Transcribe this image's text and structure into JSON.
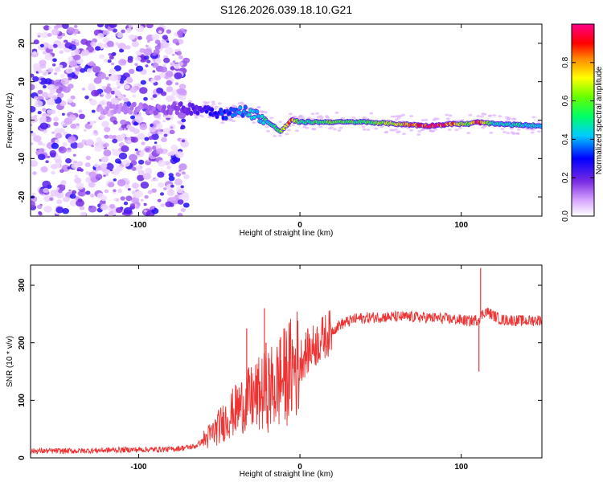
{
  "title": "S126.2026.039.18.10.G21",
  "chart_data": [
    {
      "type": "heatmap",
      "title": "S126.2026.039.18.10.G21",
      "xlabel": "Height of straight line (km)",
      "ylabel": "Frequency (Hz)",
      "xlim": [
        -167,
        150
      ],
      "ylim": [
        -25,
        25
      ],
      "xticks": [
        -100,
        0,
        100
      ],
      "xtick_labels": [
        "-100",
        "0",
        "100"
      ],
      "yticks": [
        -20,
        -10,
        0,
        10,
        20
      ],
      "ytick_labels": [
        "-20",
        "-10",
        "0",
        "10",
        "20"
      ],
      "colorbar": {
        "label": "Normalized spectral amplitude",
        "range": [
          0,
          1
        ],
        "ticks": [
          0.0,
          0.2,
          0.4,
          0.6,
          0.8
        ],
        "tick_labels": [
          "0.0",
          "0.2",
          "0.4",
          "0.6",
          "0.8"
        ]
      },
      "signal_track": {
        "description_points_x": [
          -120,
          -100,
          -80,
          -60,
          -45,
          -35,
          -25,
          -15,
          -12,
          -5,
          0,
          20,
          40,
          60,
          80,
          95,
          105,
          110,
          120,
          150
        ],
        "frequency_hz": [
          3,
          3,
          3,
          3,
          1.5,
          2.5,
          1,
          -2,
          -3,
          0,
          -0.5,
          -0.5,
          -0.5,
          -1,
          -1.5,
          -1,
          -1,
          -0.5,
          -1,
          -1.5
        ],
        "amplitude": [
          0.1,
          0.12,
          0.15,
          0.25,
          0.35,
          0.4,
          0.45,
          0.55,
          0.6,
          0.9,
          0.5,
          0.6,
          0.55,
          0.7,
          0.95,
          0.85,
          0.6,
          0.95,
          0.5,
          0.45
        ]
      },
      "noise_region_x": [
        -167,
        -70
      ]
    },
    {
      "type": "line",
      "xlabel": "Height of straight line (km)",
      "ylabel": "SNR (10 * v/v)",
      "xlim": [
        -167,
        150
      ],
      "ylim": [
        0,
        335
      ],
      "xticks": [
        -100,
        0,
        100
      ],
      "xtick_labels": [
        "-100",
        "0",
        "100"
      ],
      "yticks": [
        0,
        100,
        200,
        300
      ],
      "ytick_labels": [
        "0",
        "100",
        "200",
        "300"
      ],
      "color": "#ee3333",
      "series": [
        {
          "name": "SNR",
          "x": [
            -167,
            -140,
            -110,
            -80,
            -65,
            -55,
            -45,
            -35,
            -25,
            -15,
            -5,
            5,
            15,
            25,
            35,
            50,
            70,
            90,
            105,
            110,
            115,
            125,
            140,
            150
          ],
          "y": [
            12,
            12,
            14,
            15,
            20,
            40,
            70,
            95,
            110,
            125,
            155,
            185,
            210,
            232,
            242,
            245,
            245,
            242,
            238,
            240,
            255,
            240,
            238,
            240
          ],
          "spikes": [
            {
              "x": -33,
              "y": 225
            },
            {
              "x": -22,
              "y": 260
            },
            {
              "x": -21,
              "y": 200
            },
            {
              "x": -12,
              "y": 210
            },
            {
              "x": 111,
              "y": 150
            },
            {
              "x": 112,
              "y": 330
            }
          ]
        }
      ]
    }
  ]
}
